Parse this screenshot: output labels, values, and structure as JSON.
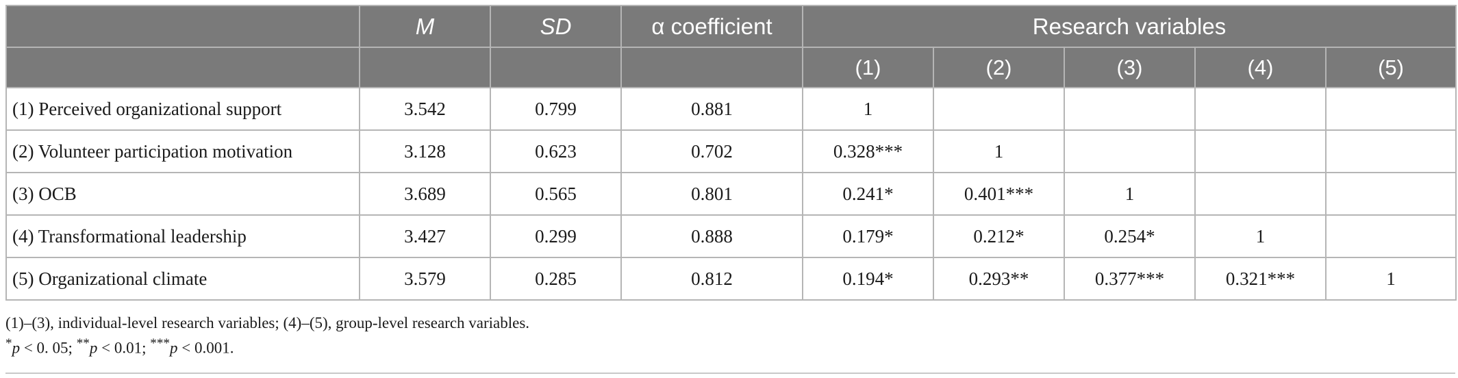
{
  "table": {
    "headers": {
      "blank": "",
      "m": "M",
      "sd": "SD",
      "alpha": "α coefficient",
      "research_variables": "Research variables",
      "cols": [
        "(1)",
        "(2)",
        "(3)",
        "(4)",
        "(5)"
      ]
    },
    "rows": [
      {
        "label": "(1) Perceived organizational support",
        "m": "3.542",
        "sd": "0.799",
        "alpha": "0.881",
        "c": [
          "1",
          "",
          "",
          "",
          ""
        ]
      },
      {
        "label": "(2) Volunteer participation motivation",
        "m": "3.128",
        "sd": "0.623",
        "alpha": "0.702",
        "c": [
          "0.328***",
          "1",
          "",
          "",
          ""
        ]
      },
      {
        "label": "(3) OCB",
        "m": "3.689",
        "sd": "0.565",
        "alpha": "0.801",
        "c": [
          "0.241*",
          "0.401***",
          "1",
          "",
          ""
        ]
      },
      {
        "label": "(4) Transformational leadership",
        "m": "3.427",
        "sd": "0.299",
        "alpha": "0.888",
        "c": [
          "0.179*",
          "0.212*",
          "0.254*",
          "1",
          ""
        ]
      },
      {
        "label": "(5) Organizational climate",
        "m": "3.579",
        "sd": "0.285",
        "alpha": "0.812",
        "c": [
          "0.194*",
          "0.293**",
          "0.377***",
          "0.321***",
          "1"
        ]
      }
    ]
  },
  "notes": {
    "line1": "(1)–(3), individual-level research variables; (4)–(5), group-level research variables.",
    "sig": {
      "s1": "*",
      "p": "p",
      "t1": " < 0. 05; ",
      "s2": "**",
      "t2": " < 0.01; ",
      "s3": "***",
      "t3": " < 0.001."
    }
  }
}
